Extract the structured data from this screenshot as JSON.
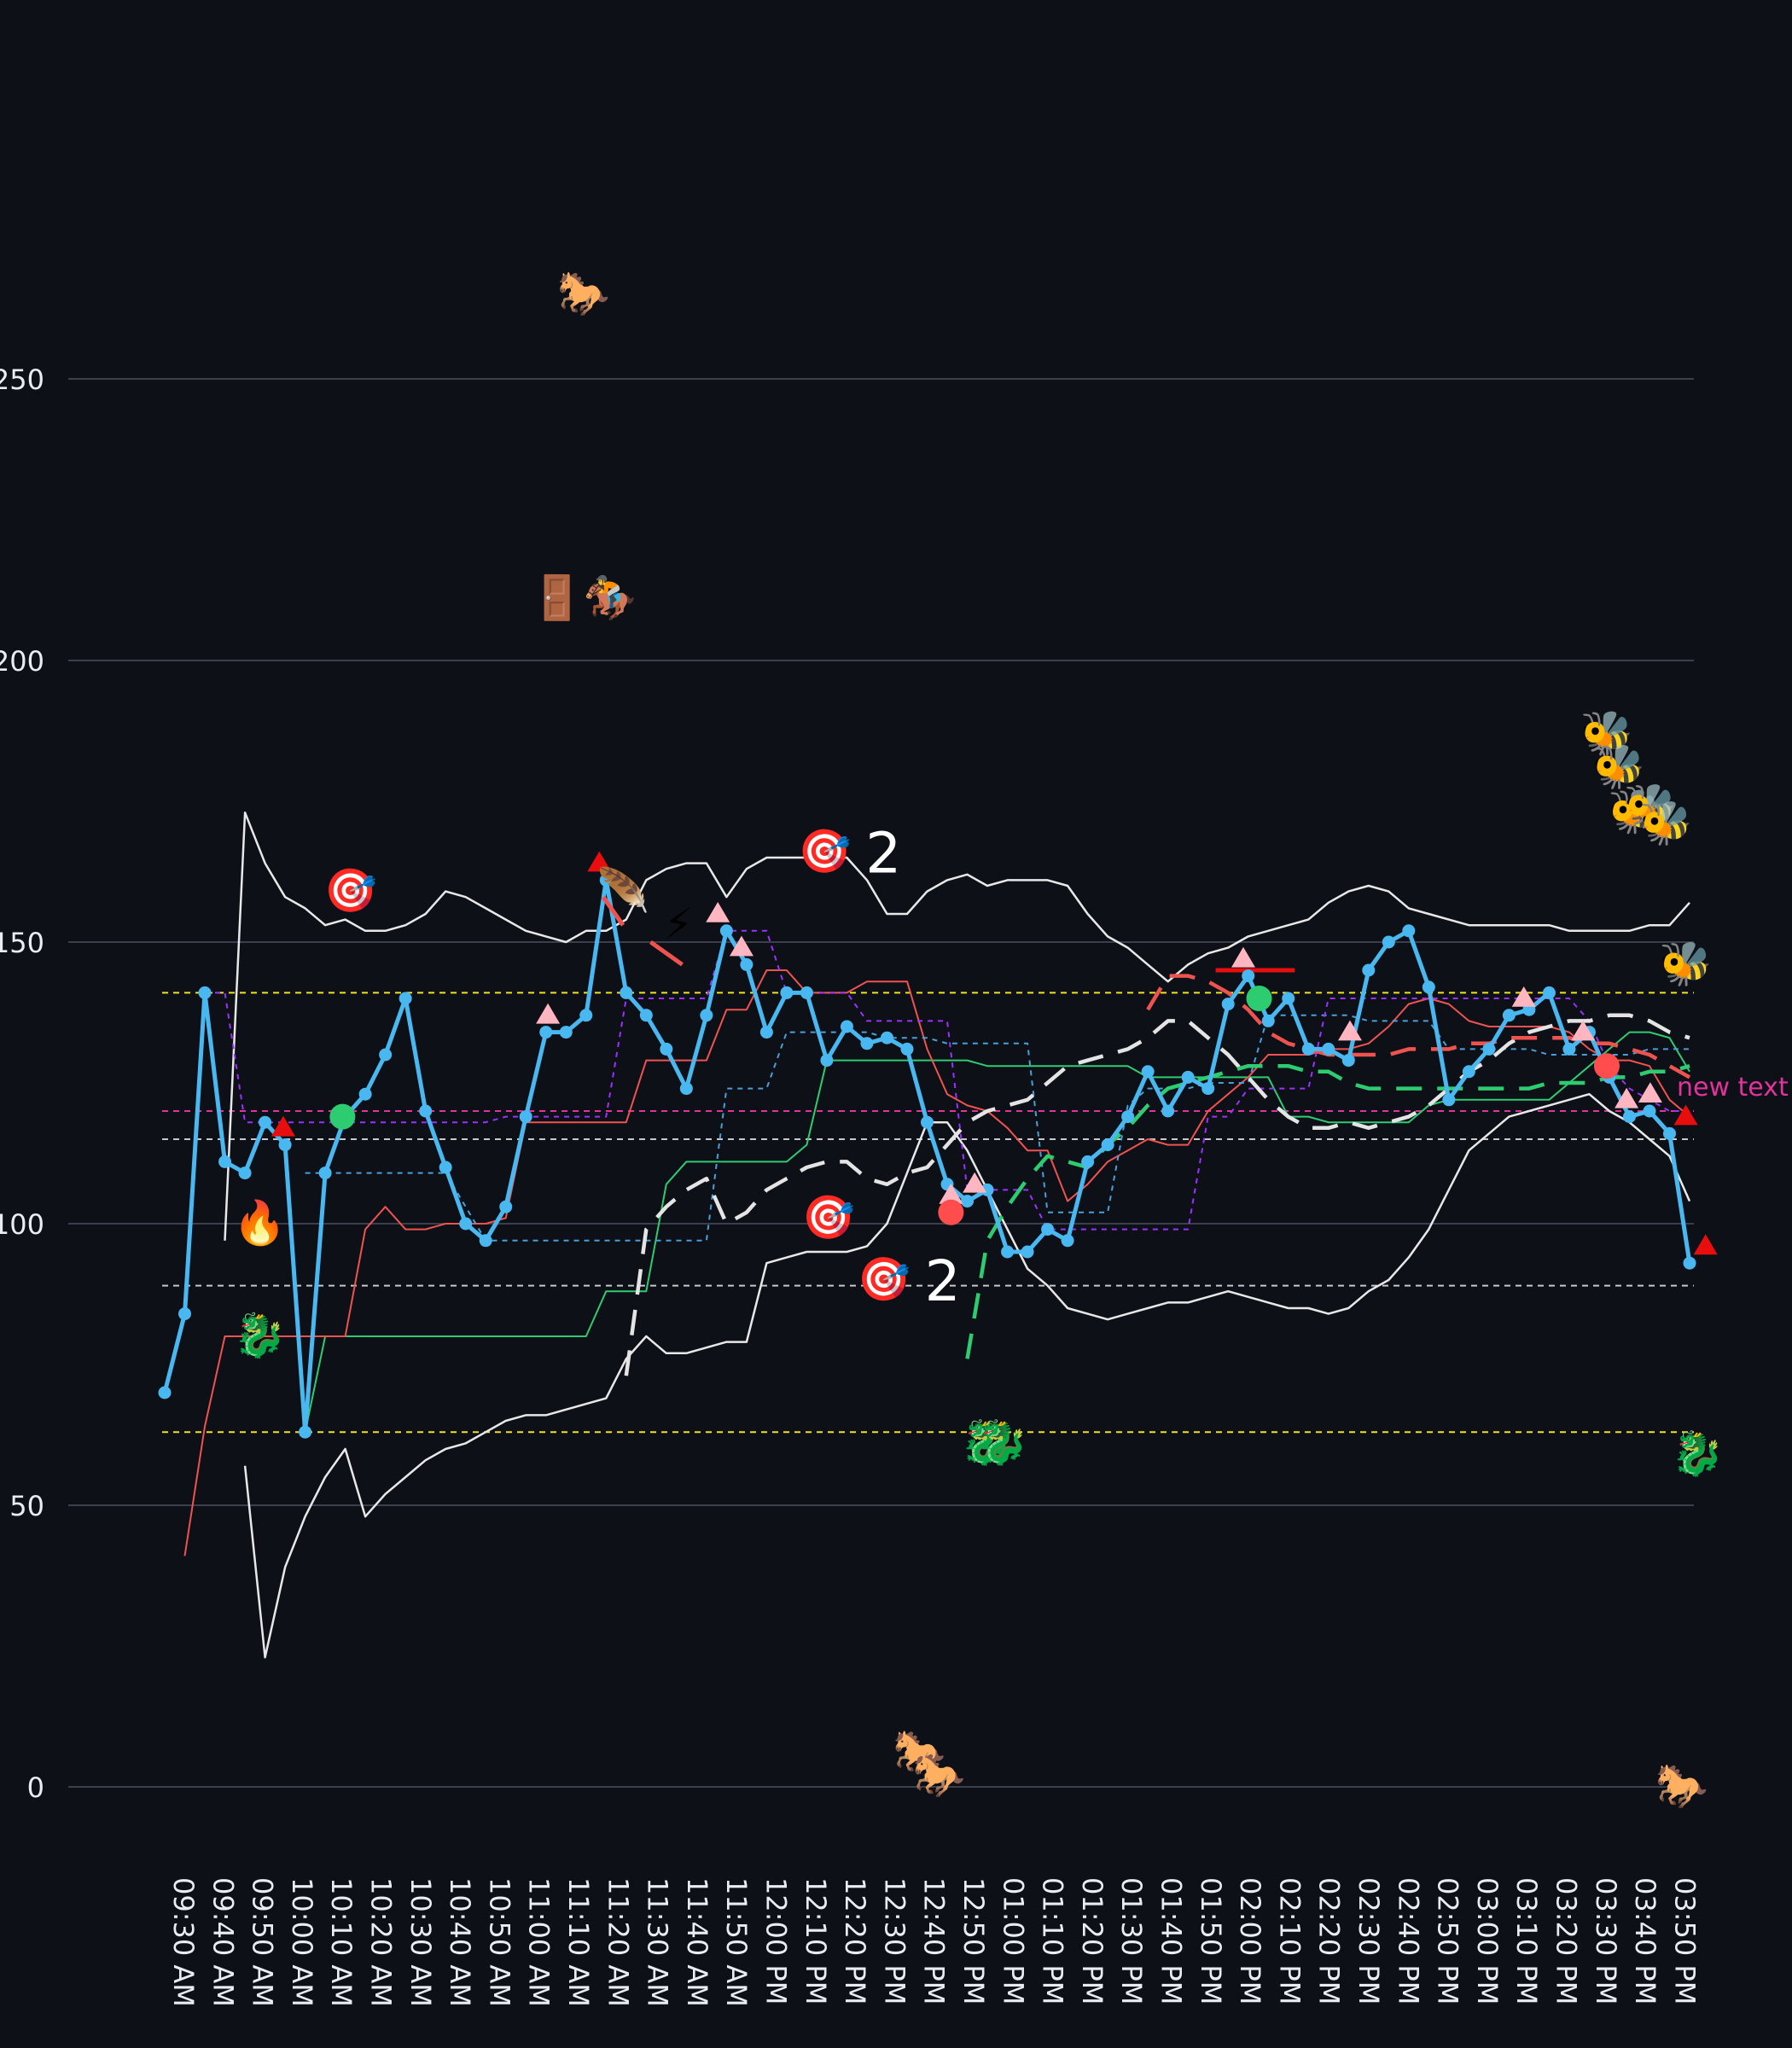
{
  "chart_data": {
    "type": "line",
    "title": "",
    "xlabel": "",
    "ylabel": "",
    "ylim": [
      -50,
      310
    ],
    "yticks": [
      0,
      50,
      100,
      150,
      200,
      250
    ],
    "grid": "horizontal",
    "x_labels": [
      "09:30 AM",
      "09:40 AM",
      "09:50 AM",
      "10:00 AM",
      "10:10 AM",
      "10:20 AM",
      "10:30 AM",
      "10:40 AM",
      "10:50 AM",
      "11:00 AM",
      "11:10 AM",
      "11:20 AM",
      "11:30 AM",
      "11:40 AM",
      "11:50 AM",
      "12:00 PM",
      "12:10 PM",
      "12:20 PM",
      "12:30 PM",
      "12:40 PM",
      "12:50 PM",
      "01:00 PM",
      "01:10 PM",
      "01:20 PM",
      "01:30 PM",
      "01:40 PM",
      "01:50 PM",
      "02:00 PM",
      "02:10 PM",
      "02:20 PM",
      "02:30 PM",
      "02:40 PM",
      "02:50 PM",
      "03:00 PM",
      "03:10 PM",
      "03:20 PM",
      "03:30 PM",
      "03:40 PM",
      "03:50 PM"
    ],
    "colors": {
      "price": "#4ab8f0",
      "upper_band": "#e8e8e8",
      "lower_band": "#e8e8e8",
      "sma_white": "#e4e4e4",
      "sma_red": "#ef5350",
      "sma_green": "#2ecc71",
      "step_green": "#2ecc71",
      "step_red": "#ef5350",
      "step_blue": "#4a9fd8",
      "step_purple": "#9b30ff",
      "hline_yellow": "#f2e21c",
      "hline_white": "#c8c8c8",
      "hline_pink": "#e0339b"
    },
    "series": [
      {
        "key": "price",
        "values": [
          70,
          84,
          141,
          111,
          109,
          118,
          114,
          63,
          109,
          119,
          123,
          130,
          140,
          120,
          110,
          100,
          97,
          103,
          119,
          134,
          134,
          137,
          161,
          141,
          137,
          131,
          124,
          137,
          152,
          146,
          134,
          141,
          141,
          129,
          135,
          132,
          133,
          131,
          118,
          107,
          104,
          106,
          95,
          95,
          99,
          97,
          111,
          114,
          119,
          127,
          120,
          126,
          124,
          139,
          144,
          136,
          140,
          131,
          131,
          129,
          145,
          150,
          152,
          142,
          122,
          127,
          131,
          137,
          138,
          141,
          131,
          134,
          126,
          119,
          120,
          116,
          93
        ]
      },
      {
        "key": "upper_band",
        "values": [
          null,
          97,
          173,
          164,
          158,
          156,
          153,
          154,
          152,
          152,
          153,
          155,
          159,
          158,
          156,
          154,
          152,
          151,
          150,
          152,
          152,
          154,
          161,
          163,
          164,
          164,
          158,
          163,
          165,
          165,
          165,
          165,
          165,
          161,
          155,
          155,
          159,
          161,
          162,
          160,
          161,
          161,
          161,
          160,
          155,
          151,
          149,
          146,
          143,
          146,
          148,
          149,
          151,
          152,
          153,
          154,
          157,
          159,
          160,
          159,
          156,
          155,
          154,
          153,
          153,
          153,
          153,
          153,
          152,
          152,
          152,
          152,
          153,
          153,
          157
        ]
      },
      {
        "key": "lower_band",
        "values": [
          null,
          57,
          23,
          39,
          48,
          55,
          60,
          48,
          52,
          55,
          58,
          60,
          61,
          63,
          65,
          66,
          66,
          67,
          68,
          69,
          76,
          80,
          77,
          77,
          78,
          79,
          79,
          93,
          94,
          95,
          95,
          95,
          96,
          100,
          109,
          118,
          118,
          113,
          106,
          99,
          92,
          89,
          85,
          84,
          83,
          84,
          85,
          86,
          86,
          87,
          88,
          87,
          86,
          85,
          85,
          84,
          85,
          88,
          90,
          94,
          99,
          106,
          113,
          116,
          119,
          120,
          121,
          122,
          123,
          120,
          118,
          115,
          112,
          104
        ]
      },
      {
        "key": "sma_white",
        "values": [
          null,
          73,
          99,
          103,
          106,
          108,
          100,
          102,
          106,
          108,
          110,
          111,
          111,
          108,
          107,
          109,
          110,
          114,
          118,
          120,
          121,
          122,
          125,
          128,
          129,
          130,
          131,
          133,
          136,
          136,
          133,
          130,
          126,
          122,
          119,
          117,
          117,
          118,
          117,
          118,
          119,
          121,
          124,
          127,
          129,
          132,
          134,
          135,
          136,
          136,
          137,
          137,
          136,
          134,
          133
        ]
      },
      {
        "key": "sma_red",
        "values": [
          null,
          null,
          null,
          null,
          null,
          null,
          null,
          null,
          null,
          null,
          null,
          null,
          null,
          null,
          null,
          138,
          144,
          144,
          143,
          141,
          138,
          134,
          132,
          131,
          130,
          130,
          130,
          130,
          131,
          131,
          131,
          132,
          132,
          133,
          133,
          133,
          133,
          132,
          132,
          131,
          130,
          128,
          126
        ]
      },
      {
        "key": "sma_green",
        "values": [
          null,
          null,
          null,
          null,
          null,
          null,
          null,
          76,
          97,
          103,
          108,
          112,
          111,
          110,
          114,
          117,
          121,
          124,
          125,
          126,
          127,
          128,
          128,
          128,
          127,
          127,
          125,
          124,
          124,
          124,
          124,
          124,
          124,
          124,
          124,
          124,
          125,
          125,
          125,
          126,
          126,
          127,
          127,
          128
        ]
      },
      {
        "key": "step_green",
        "values": [
          null,
          null,
          null,
          null,
          null,
          null,
          null,
          63,
          80,
          80,
          80,
          80,
          80,
          80,
          80,
          80,
          80,
          80,
          80,
          80,
          80,
          80,
          88,
          88,
          88,
          107,
          111,
          111,
          111,
          111,
          111,
          111,
          114,
          129,
          129,
          129,
          129,
          129,
          129,
          129,
          129,
          128,
          128,
          128,
          128,
          128,
          128,
          128,
          128,
          126,
          126,
          126,
          126,
          126,
          126,
          126,
          119,
          119,
          118,
          118,
          118,
          118,
          118,
          121,
          122,
          122,
          122,
          122,
          122,
          122,
          125,
          128,
          131,
          134,
          134,
          133,
          127
        ]
      },
      {
        "key": "step_red",
        "values": [
          41,
          64,
          80,
          80,
          80,
          80,
          80,
          80,
          80,
          99,
          103,
          99,
          99,
          100,
          100,
          100,
          101,
          118,
          118,
          118,
          118,
          118,
          118,
          129,
          129,
          129,
          129,
          138,
          138,
          145,
          145,
          141,
          141,
          141,
          143,
          143,
          143,
          131,
          123,
          121,
          120,
          117,
          113,
          113,
          104,
          107,
          111,
          113,
          115,
          114,
          114,
          120,
          123,
          126,
          130,
          130,
          130,
          131,
          131,
          132,
          135,
          139,
          140,
          139,
          136,
          135,
          135,
          135,
          135,
          134,
          131,
          129,
          129,
          128,
          122,
          119
        ]
      },
      {
        "key": "step_blue",
        "values": [
          null,
          null,
          null,
          null,
          null,
          null,
          null,
          109,
          109,
          109,
          109,
          109,
          109,
          109,
          109,
          103,
          97,
          97,
          97,
          97,
          97,
          97,
          97,
          97,
          97,
          97,
          97,
          97,
          124,
          124,
          124,
          134,
          134,
          134,
          134,
          134,
          133,
          133,
          133,
          132,
          132,
          132,
          132,
          132,
          102,
          102,
          102,
          102,
          121,
          124,
          124,
          124,
          125,
          125,
          125,
          137,
          137,
          137,
          137,
          137,
          136,
          136,
          136,
          136,
          131,
          131,
          131,
          131,
          131,
          130,
          130,
          130,
          130,
          130,
          131,
          131,
          131
        ]
      },
      {
        "key": "step_purple",
        "values": [
          null,
          null,
          141,
          141,
          118,
          118,
          118,
          118,
          118,
          118,
          118,
          118,
          118,
          118,
          118,
          118,
          118,
          119,
          119,
          119,
          119,
          119,
          119,
          140,
          140,
          140,
          140,
          140,
          152,
          152,
          152,
          141,
          141,
          141,
          141,
          136,
          136,
          136,
          136,
          136,
          106,
          106,
          106,
          106,
          99,
          99,
          99,
          99,
          99,
          99,
          99,
          99,
          119,
          119,
          124,
          124,
          124,
          124,
          140,
          140,
          140,
          140,
          140,
          140,
          140,
          140,
          140,
          140,
          140,
          140,
          140,
          136,
          128,
          124,
          122,
          120,
          120
        ]
      }
    ],
    "hlines": [
      {
        "y": 141,
        "color": "#f2e21c",
        "label": ""
      },
      {
        "y": 63,
        "color": "#f2e21c",
        "label": ""
      },
      {
        "y": 115,
        "color": "#c8c8c8",
        "label": ""
      },
      {
        "y": 89,
        "color": "#c8c8c8",
        "label": ""
      },
      {
        "y": 120,
        "color": "#e0339b",
        "label": "new text"
      }
    ],
    "annotations": [
      {
        "icon": "horse",
        "glyph": "🐎",
        "x": 10.6,
        "y": 265,
        "text": ""
      },
      {
        "icon": "door-horse-racing",
        "glyph": "🚪🏇",
        "x": 10.6,
        "y": 211,
        "text": ""
      },
      {
        "icon": "target",
        "glyph": "🎯",
        "x": 4.7,
        "y": 159,
        "text": ""
      },
      {
        "icon": "target",
        "glyph": "🎯",
        "x": 16.7,
        "y": 166,
        "text": "2"
      },
      {
        "icon": "target",
        "glyph": "🎯",
        "x": 16.8,
        "y": 101,
        "text": ""
      },
      {
        "icon": "target",
        "glyph": "🎯",
        "x": 18.2,
        "y": 90,
        "text": "2"
      },
      {
        "icon": "fire",
        "glyph": "🔥",
        "x": 2.4,
        "y": 100,
        "text": ""
      },
      {
        "icon": "lightning",
        "glyph": "⚡",
        "x": 13.0,
        "y": 153,
        "text": ""
      },
      {
        "icon": "feather",
        "glyph": "🪶",
        "x": 11.6,
        "y": 159,
        "text": ""
      },
      {
        "icon": "bee",
        "glyph": "🐝",
        "x": 36.5,
        "y": 187,
        "text": ""
      },
      {
        "icon": "bee",
        "glyph": "🐝",
        "x": 36.8,
        "y": 181,
        "text": ""
      },
      {
        "icon": "bee",
        "glyph": "🐝",
        "x": 37.2,
        "y": 173,
        "text": ""
      },
      {
        "icon": "bee",
        "glyph": "🐝",
        "x": 37.6,
        "y": 174,
        "text": ""
      },
      {
        "icon": "bee",
        "glyph": "🐝",
        "x": 38.0,
        "y": 171,
        "text": ""
      },
      {
        "icon": "bee",
        "glyph": "🐝",
        "x": 38.5,
        "y": 146,
        "text": ""
      },
      {
        "icon": "dragon",
        "glyph": "🐉",
        "x": 2.4,
        "y": 80,
        "text": ""
      },
      {
        "icon": "dragon",
        "glyph": "🐉",
        "x": 20.8,
        "y": 61,
        "text": ""
      },
      {
        "icon": "dragon",
        "glyph": "🐉",
        "x": 21.2,
        "y": 61,
        "text": ""
      },
      {
        "icon": "dragon",
        "glyph": "🐉",
        "x": 38.8,
        "y": 59,
        "text": ""
      },
      {
        "icon": "horse",
        "glyph": "🐎",
        "x": 19.1,
        "y": 6,
        "text": ""
      },
      {
        "icon": "horse",
        "glyph": "🐎",
        "x": 19.6,
        "y": 2,
        "text": ""
      },
      {
        "icon": "horse",
        "glyph": "🐎",
        "x": 38.4,
        "y": 0,
        "text": ""
      }
    ],
    "markers": [
      {
        "shape": "triangle-up",
        "color": "#e80e0e",
        "x": 3.0,
        "y": 117
      },
      {
        "shape": "triangle-up",
        "color": "#e80e0e",
        "x": 11.0,
        "y": 164
      },
      {
        "shape": "triangle-up",
        "color": "#e80e0e",
        "x": 38.5,
        "y": 119
      },
      {
        "shape": "triangle-up",
        "color": "#e80e0e",
        "x": 39.0,
        "y": 96
      },
      {
        "shape": "triangle-up",
        "color": "#ffb6c1",
        "x": 9.7,
        "y": 137
      },
      {
        "shape": "triangle-up",
        "color": "#ffb6c1",
        "x": 14.0,
        "y": 155
      },
      {
        "shape": "triangle-up",
        "color": "#ffb6c1",
        "x": 14.6,
        "y": 149
      },
      {
        "shape": "triangle-up",
        "color": "#ffb6c1",
        "x": 19.9,
        "y": 105
      },
      {
        "shape": "triangle-up",
        "color": "#ffb6c1",
        "x": 20.5,
        "y": 107
      },
      {
        "shape": "triangle-up",
        "color": "#ffb6c1",
        "x": 27.3,
        "y": 147
      },
      {
        "shape": "triangle-up",
        "color": "#ffb6c1",
        "x": 30.0,
        "y": 134
      },
      {
        "shape": "triangle-up",
        "color": "#ffb6c1",
        "x": 34.4,
        "y": 140
      },
      {
        "shape": "triangle-up",
        "color": "#ffb6c1",
        "x": 35.9,
        "y": 134
      },
      {
        "shape": "triangle-up",
        "color": "#ffb6c1",
        "x": 37.0,
        "y": 122
      },
      {
        "shape": "triangle-up",
        "color": "#ffb6c1",
        "x": 37.6,
        "y": 123
      },
      {
        "shape": "circle",
        "color": "#2ecc71",
        "x": 4.5,
        "y": 119
      },
      {
        "shape": "circle",
        "color": "#2ecc71",
        "x": 27.7,
        "y": 140
      },
      {
        "shape": "circle",
        "color": "#ff4d4d",
        "x": 19.9,
        "y": 102
      },
      {
        "shape": "circle",
        "color": "#ff4d4d",
        "x": 36.5,
        "y": 128
      }
    ],
    "segments": [
      {
        "color": "#e80e0e",
        "x1": 26.6,
        "y1": 145,
        "x2": 28.6,
        "y2": 145,
        "dash": false
      },
      {
        "color": "#ef5350",
        "x1": 12.3,
        "y1": 150,
        "x2": 13.1,
        "y2": 146,
        "dash": false
      },
      {
        "color": "#ef5350",
        "x1": 11.1,
        "y1": 158,
        "x2": 11.6,
        "y2": 153,
        "dash": false
      }
    ]
  }
}
